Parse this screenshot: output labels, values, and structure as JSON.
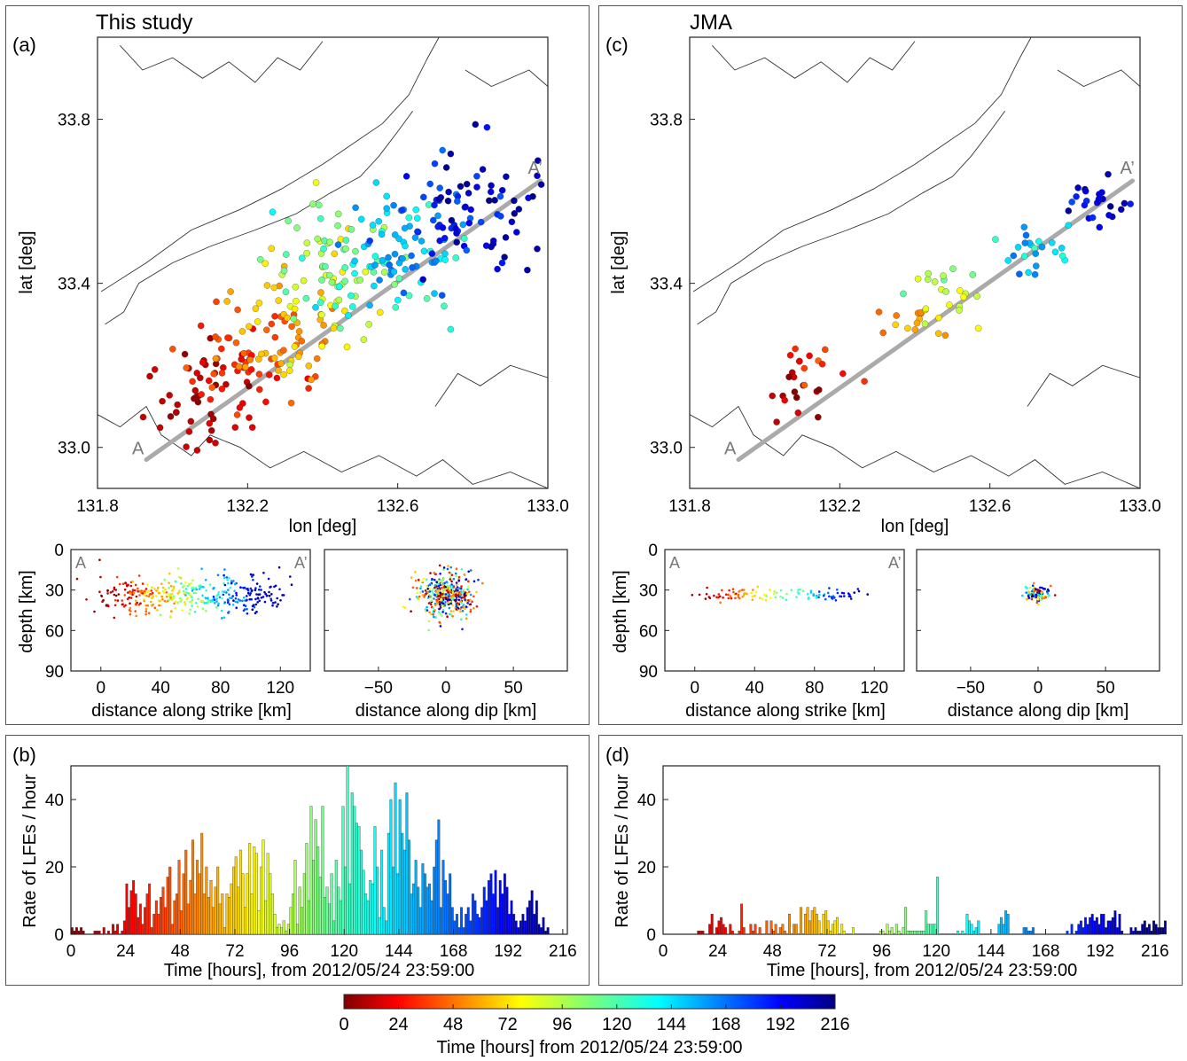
{
  "left_column": {
    "heading": "This study"
  },
  "right_column": {
    "heading": "JMA"
  },
  "panel_labels": {
    "a": "(a)",
    "b": "(b)",
    "c": "(c)",
    "d": "(d)"
  },
  "profile_labels": {
    "start": "A",
    "end": "A’"
  },
  "colorbar": {
    "label": "Time [hours] from 2012/05/24 23:59:00",
    "ticks": [
      "0",
      "24",
      "48",
      "72",
      "96",
      "120",
      "144",
      "168",
      "192",
      "216"
    ],
    "colormap": "jet_reversed"
  },
  "chart_data": [
    {
      "id": "a-map",
      "type": "scatter",
      "xlabel": "lon [deg]",
      "ylabel": "lat [deg]",
      "xlim": [
        131.8,
        133.0
      ],
      "ylim": [
        32.9,
        34.0
      ],
      "xticks": [
        "131.8",
        "132.2",
        "132.6",
        "133.0"
      ],
      "yticks": [
        "33.0",
        "33.4",
        "33.8"
      ],
      "profile": {
        "A": [
          131.93,
          32.97
        ],
        "A_prime": [
          132.98,
          33.65
        ]
      },
      "color_by": "time_hours",
      "clusters": [
        {
          "t": [
            0,
            24
          ],
          "center": [
            132.08,
            33.13
          ],
          "n": 45
        },
        {
          "t": [
            24,
            48
          ],
          "center": [
            132.18,
            33.21
          ],
          "n": 50
        },
        {
          "t": [
            48,
            72
          ],
          "center": [
            132.3,
            33.28
          ],
          "n": 45
        },
        {
          "t": [
            72,
            96
          ],
          "center": [
            132.4,
            33.36
          ],
          "n": 40
        },
        {
          "t": [
            96,
            120
          ],
          "center": [
            132.48,
            33.44
          ],
          "n": 45
        },
        {
          "t": [
            120,
            144
          ],
          "center": [
            132.55,
            33.48
          ],
          "n": 45
        },
        {
          "t": [
            144,
            168
          ],
          "center": [
            132.62,
            33.5
          ],
          "n": 45
        },
        {
          "t": [
            168,
            192
          ],
          "center": [
            132.74,
            33.55
          ],
          "n": 40
        },
        {
          "t": [
            192,
            216
          ],
          "center": [
            132.86,
            33.6
          ],
          "n": 40
        }
      ]
    },
    {
      "id": "a-strike",
      "type": "scatter",
      "xlabel": "distance along strike [km]",
      "ylabel": "depth [km]",
      "xlim": [
        -20,
        140
      ],
      "ylim": [
        90,
        0
      ],
      "xticks": [
        "0",
        "40",
        "80",
        "120"
      ],
      "yticks": [
        "0",
        "30",
        "60",
        "90"
      ]
    },
    {
      "id": "a-dip",
      "type": "scatter",
      "xlabel": "distance along dip [km]",
      "xlim": [
        -90,
        90
      ],
      "ylim": [
        90,
        0
      ],
      "xticks": [
        "−50",
        "0",
        "50"
      ]
    },
    {
      "id": "b-rate",
      "type": "bar",
      "xlabel": "Time [hours], from 2012/05/24 23:59:00",
      "ylabel": "Rate of LFEs / hour",
      "xlim": [
        0,
        218
      ],
      "ylim": [
        0,
        50
      ],
      "xticks": [
        "0",
        "24",
        "48",
        "72",
        "96",
        "120",
        "144",
        "168",
        "192",
        "216"
      ],
      "yticks": [
        "0",
        "20",
        "40"
      ],
      "bin_hours": 1,
      "values": [
        2,
        1,
        2,
        1,
        2,
        1,
        0,
        0,
        0,
        0,
        1,
        1,
        1,
        0,
        2,
        0,
        1,
        0,
        3,
        1,
        3,
        0,
        1,
        4,
        15,
        8,
        13,
        16,
        12,
        5,
        9,
        3,
        8,
        12,
        15,
        2,
        6,
        10,
        6,
        11,
        14,
        8,
        17,
        20,
        3,
        10,
        12,
        22,
        7,
        18,
        25,
        9,
        16,
        28,
        12,
        22,
        18,
        30,
        12,
        20,
        11,
        16,
        8,
        14,
        20,
        9,
        12,
        2,
        12,
        11,
        15,
        20,
        23,
        14,
        25,
        18,
        8,
        18,
        27,
        12,
        26,
        24,
        7,
        20,
        28,
        10,
        24,
        18,
        12,
        6,
        2,
        3,
        2,
        4,
        1,
        3,
        8,
        12,
        22,
        3,
        14,
        8,
        18,
        27,
        10,
        38,
        22,
        34,
        26,
        17,
        38,
        11,
        14,
        9,
        18,
        4,
        22,
        14,
        10,
        38,
        20,
        50,
        15,
        42,
        38,
        33,
        32,
        25,
        19,
        12,
        10,
        16,
        15,
        32,
        20,
        5,
        25,
        8,
        4,
        30,
        40,
        20,
        45,
        18,
        40,
        30,
        25,
        42,
        28,
        12,
        15,
        22,
        14,
        8,
        21,
        18,
        14,
        15,
        10,
        20,
        28,
        34,
        8,
        22,
        16,
        12,
        18,
        8,
        4,
        6,
        2,
        8,
        2,
        6,
        8,
        4,
        12,
        10,
        6,
        5,
        8,
        14,
        10,
        16,
        18,
        12,
        19,
        8,
        16,
        12,
        18,
        14,
        6,
        10,
        6,
        4,
        2,
        4,
        6,
        4,
        8,
        10,
        13,
        6,
        10,
        3,
        2,
        5,
        1,
        2
      ],
      "color_by": "time_hours"
    },
    {
      "id": "c-map",
      "type": "scatter",
      "xlabel": "lon [deg]",
      "ylabel": "lat [deg]",
      "xlim": [
        131.8,
        133.0
      ],
      "ylim": [
        32.9,
        34.0
      ],
      "xticks": [
        "131.8",
        "132.2",
        "132.6",
        "133.0"
      ],
      "yticks": [
        "33.0",
        "33.4",
        "33.8"
      ],
      "profile": {
        "A": [
          131.93,
          32.97
        ],
        "A_prime": [
          132.98,
          33.65
        ]
      },
      "color_by": "time_hours",
      "clusters": [
        {
          "t": [
            0,
            24
          ],
          "center": [
            132.08,
            33.12
          ],
          "n": 14
        },
        {
          "t": [
            24,
            48
          ],
          "center": [
            132.14,
            33.2
          ],
          "n": 12
        },
        {
          "t": [
            48,
            72
          ],
          "center": [
            132.38,
            33.29
          ],
          "n": 14
        },
        {
          "t": [
            72,
            96
          ],
          "center": [
            132.48,
            33.36
          ],
          "n": 14
        },
        {
          "t": [
            96,
            120
          ],
          "center": [
            132.47,
            33.4
          ],
          "n": 8
        },
        {
          "t": [
            120,
            144
          ],
          "center": [
            132.7,
            33.49
          ],
          "n": 14
        },
        {
          "t": [
            144,
            168
          ],
          "center": [
            132.72,
            33.47
          ],
          "n": 10
        },
        {
          "t": [
            168,
            192
          ],
          "center": [
            132.86,
            33.6
          ],
          "n": 10
        },
        {
          "t": [
            192,
            216
          ],
          "center": [
            132.88,
            33.61
          ],
          "n": 14
        }
      ]
    },
    {
      "id": "c-strike",
      "type": "scatter",
      "xlabel": "distance along strike [km]",
      "ylabel": "depth [km]",
      "xlim": [
        -20,
        140
      ],
      "ylim": [
        90,
        0
      ],
      "xticks": [
        "0",
        "40",
        "80",
        "120"
      ],
      "yticks": [
        "0",
        "30",
        "60",
        "90"
      ]
    },
    {
      "id": "c-dip",
      "type": "scatter",
      "xlabel": "distance along dip [km]",
      "xlim": [
        -90,
        90
      ],
      "ylim": [
        90,
        0
      ],
      "xticks": [
        "−50",
        "0",
        "50"
      ]
    },
    {
      "id": "d-rate",
      "type": "bar",
      "xlabel": "Time [hours], from 2012/05/24 23:59:00",
      "ylabel": "Rate of LFEs / hour",
      "xlim": [
        0,
        218
      ],
      "ylim": [
        0,
        50
      ],
      "xticks": [
        "0",
        "24",
        "48",
        "72",
        "96",
        "120",
        "144",
        "168",
        "192",
        "216"
      ],
      "yticks": [
        "0",
        "20",
        "40"
      ],
      "bin_hours": 1,
      "values": [
        0,
        0,
        0,
        0,
        0,
        0,
        0,
        0,
        0,
        0,
        0,
        0,
        0,
        0,
        0,
        1,
        1,
        1,
        0,
        0,
        3,
        6,
        0,
        2,
        4,
        5,
        3,
        2,
        0,
        3,
        1,
        0,
        0,
        1,
        9,
        2,
        0,
        0,
        3,
        1,
        3,
        0,
        2,
        0,
        0,
        4,
        0,
        4,
        1,
        3,
        0,
        2,
        3,
        1,
        0,
        6,
        0,
        3,
        3,
        0,
        8,
        0,
        6,
        8,
        4,
        7,
        8,
        6,
        4,
        0,
        6,
        7,
        4,
        1,
        3,
        4,
        5,
        0,
        3,
        1,
        0,
        0,
        0,
        2,
        0,
        0,
        0,
        0,
        0,
        0,
        0,
        0,
        0,
        0,
        0,
        1,
        1,
        0,
        3,
        1,
        2,
        0,
        3,
        1,
        0,
        2,
        8,
        1,
        1,
        1,
        1,
        1,
        1,
        1,
        1,
        7,
        3,
        3,
        3,
        3,
        17,
        0,
        0,
        0,
        0,
        0,
        0,
        0,
        0,
        1,
        0,
        1,
        0,
        6,
        4,
        3,
        1,
        2,
        4,
        0,
        0,
        0,
        0,
        0,
        0,
        0,
        0,
        3,
        5,
        3,
        7,
        6,
        0,
        0,
        0,
        0,
        0,
        0,
        2,
        2,
        1,
        1,
        2,
        0,
        0,
        0,
        0,
        0,
        0,
        0,
        0,
        0,
        0,
        0,
        0,
        0,
        0,
        1,
        0,
        3,
        0,
        1,
        3,
        4,
        2,
        5,
        3,
        5,
        6,
        4,
        5,
        3,
        6,
        6,
        2,
        4,
        4,
        5,
        7,
        2,
        6,
        1,
        0,
        0,
        0,
        2,
        1,
        2,
        1,
        1,
        3,
        4,
        2,
        3,
        1,
        4,
        3,
        2,
        2,
        2,
        4
      ]
    }
  ]
}
